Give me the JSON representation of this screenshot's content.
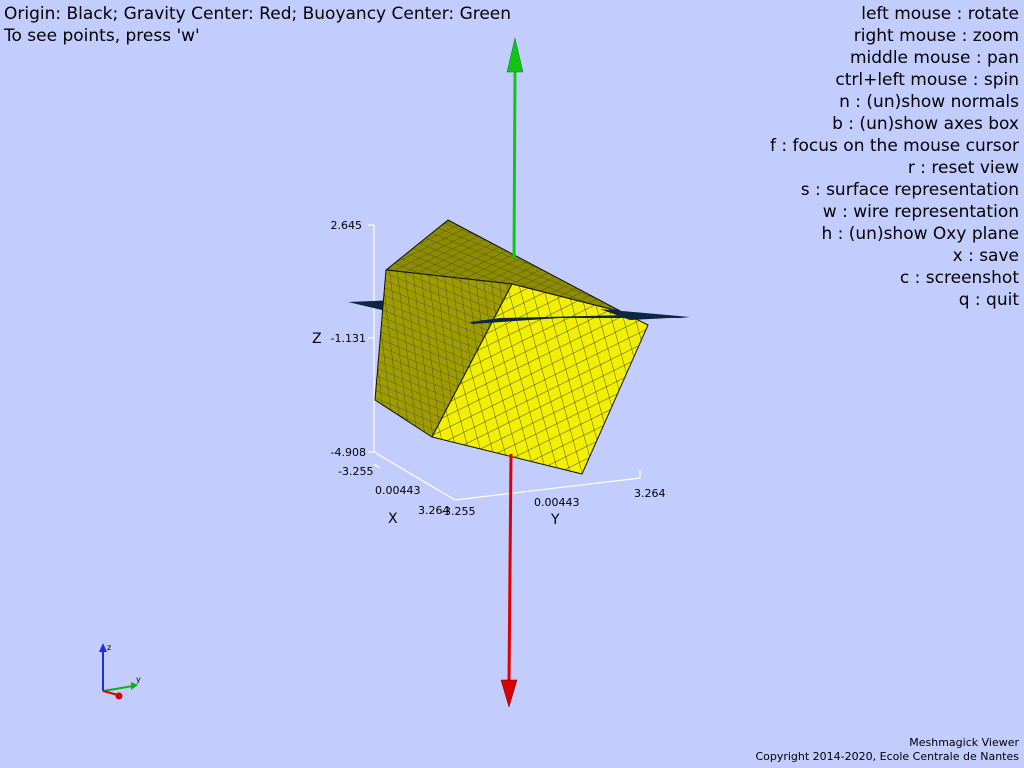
{
  "header": {
    "legend": "Origin: Black; Gravity Center: Red; Buoyancy Center: Green",
    "hint": "To see points, press 'w'"
  },
  "help": [
    "left mouse : rotate",
    "right mouse : zoom",
    "middle mouse : pan",
    "ctrl+left mouse : spin",
    "n : (un)show normals",
    "b : (un)show axes box",
    "f : focus on the mouse cursor",
    "r : reset view",
    "s : surface representation",
    "w : wire representation",
    "h : (un)show Oxy plane",
    "x : save",
    "c : screenshot",
    "q : quit"
  ],
  "axes_box": {
    "z": {
      "label": "Z",
      "ticks": [
        "2.645",
        "-1.131",
        "-4.908"
      ]
    },
    "x": {
      "label": "X",
      "ticks": [
        "-3.255",
        "0.00443",
        "3.264"
      ]
    },
    "y": {
      "label": "Y",
      "ticks": [
        "-3.255",
        "0.00443",
        "3.264"
      ]
    }
  },
  "orientation_triad": {
    "z": "z",
    "y": "y"
  },
  "colors": {
    "background": "#c3cdfd",
    "gravity_center": "#e00000",
    "buoyancy_center": "#11c511",
    "mesh_face": "#f2f000",
    "oxy_plane": "#0d2645"
  },
  "footer": {
    "app": "Meshmagick Viewer",
    "copyright": "Copyright 2014-2020, Ecole Centrale de Nantes"
  }
}
